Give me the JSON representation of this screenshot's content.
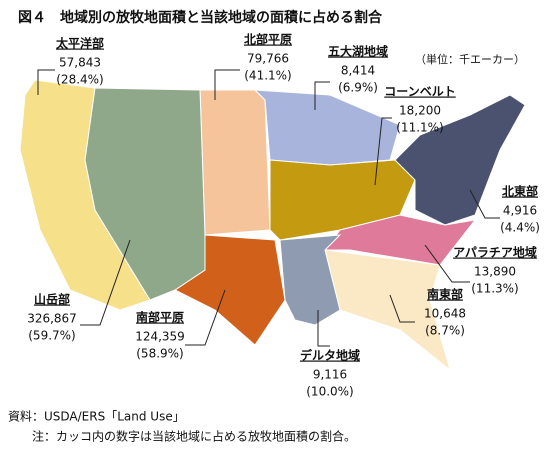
{
  "title": "図４　地域別の放牧地面積と当該地域の面積に占める割合",
  "unit": "（単位：千エーカー）",
  "regions": [
    {
      "name": "太平洋部",
      "color": "#f7e08a",
      "value": 57843,
      "value_label": "57,843",
      "share": 28.4,
      "share_label": "(28.4%)"
    },
    {
      "name": "北部平原",
      "color": "#f5c49a",
      "value": 79766,
      "value_label": "79,766",
      "share": 41.1,
      "share_label": "(41.1%)"
    },
    {
      "name": "五大湖地域",
      "color": "#a8b4dc",
      "value": 8414,
      "value_label": "8,414",
      "share": 6.9,
      "share_label": "(6.9%)"
    },
    {
      "name": "コーンベルト",
      "color": "#c49a10",
      "value": 18200,
      "value_label": "18,200",
      "share": 11.1,
      "share_label": "(11.1%)"
    },
    {
      "name": "北東部",
      "color": "#4a5270",
      "value": 4916,
      "value_label": "4,916",
      "share": 4.4,
      "share_label": "(4.4%)"
    },
    {
      "name": "アパラチア地域",
      "color": "#e07a9a",
      "value": 13890,
      "value_label": "13,890",
      "share": 11.3,
      "share_label": "(11.3%)"
    },
    {
      "name": "南東部",
      "color": "#fbe8c4",
      "value": 10648,
      "value_label": "10,648",
      "share": 8.7,
      "share_label": "(8.7%)"
    },
    {
      "name": "デルタ地域",
      "color": "#8f9bb0",
      "value": 9116,
      "value_label": "9,116",
      "share": 10.0,
      "share_label": "(10.0%)"
    },
    {
      "name": "南部平原",
      "color": "#d0601a",
      "value": 124359,
      "value_label": "124,359",
      "share": 58.9,
      "share_label": "(58.9%)"
    },
    {
      "name": "山岳部",
      "color": "#8fa88a",
      "value": 326867,
      "value_label": "326,867",
      "share": 59.7,
      "share_label": "(59.7%)"
    }
  ],
  "source": "資料：USDA/ERS「Land Use」",
  "note": "注：カッコ内の数字は当該地域に占める放牧地面積の割合。"
}
